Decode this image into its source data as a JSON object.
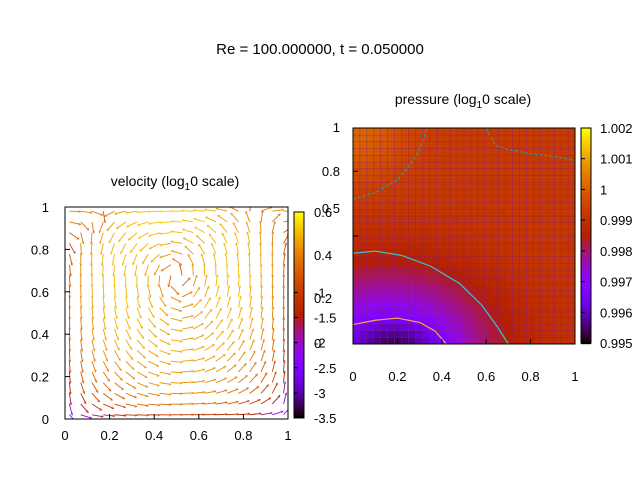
{
  "suptitle": "Re = 100.000000, t = 0.050000",
  "chart_data": [
    {
      "type": "quiver",
      "title": "velocity (log",
      "title_sub": "1",
      "title_tail": "0 scale)",
      "xlim": [
        0,
        1
      ],
      "ylim": [
        0,
        1
      ],
      "xticks": [
        "0",
        "0.2",
        "0.4",
        "0.6",
        "0.8",
        "1"
      ],
      "yticks": [
        "0",
        "0.2",
        "0.4",
        "0.6",
        "0.8",
        "1"
      ],
      "colorbar": {
        "range": [
          -3.5,
          0.6
        ],
        "ticks": [
          "0.6",
          "-1",
          "-1.5",
          "-2",
          "-2.5",
          "-3",
          "-3.5"
        ],
        "overlap_ticks": [
          "0.4",
          "0.2",
          "0"
        ],
        "colormap": "gnuplot pm3d (black-purple-red-orange-yellow)"
      },
      "grid": "20x20 arrows, lid-driven cavity flow: top lid moving right, clockwise recirculation"
    },
    {
      "type": "heatmap",
      "title": "pressure (log",
      "title_sub": "1",
      "title_tail": "0 scale)",
      "xlim": [
        0,
        1
      ],
      "ylim": [
        0,
        1
      ],
      "xticks": [
        "0",
        "0.2",
        "0.4",
        "0.6",
        "0.8",
        "1"
      ],
      "yticks": [
        "0.5",
        "0.8",
        "1"
      ],
      "colorbar": {
        "range": [
          0.995,
          1.002
        ],
        "ticks": [
          "1.002",
          "1.001",
          "1",
          "0.999",
          "0.998",
          "0.997",
          "0.996",
          "0.995"
        ],
        "colormap": "gnuplot pm3d (black-purple-red-orange-yellow)"
      },
      "contours": [
        "#2a9d9a",
        "#33c6d6",
        "#ffa64d"
      ],
      "grid": "32x32 cells, low pressure near bottom-left, high pressure top-left corner"
    }
  ]
}
